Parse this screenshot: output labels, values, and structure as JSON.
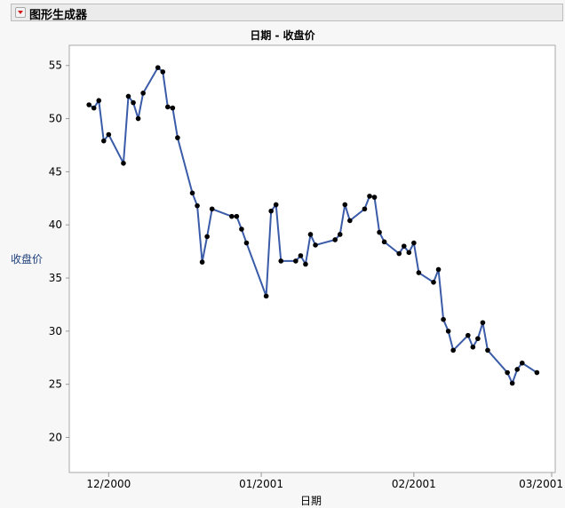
{
  "header": {
    "title": "图形生成器",
    "menu_icon": "red-triangle-menu-icon",
    "disclosure_icon": "disclosure-triangle-icon"
  },
  "chart_data": {
    "type": "line",
    "title": "日期 - 收盘价",
    "xlabel": "日期",
    "ylabel": "收盘价",
    "ylim": [
      16.7,
      56.9
    ],
    "xlim": [
      "2000-11-23",
      "2001-03-01"
    ],
    "yticks": [
      20,
      25,
      30,
      35,
      40,
      45,
      50,
      55
    ],
    "xticks": [
      {
        "date": "2000-12-01",
        "label": "12/2000"
      },
      {
        "date": "2001-01-01",
        "label": "01/2001"
      },
      {
        "date": "2001-02-01",
        "label": "02/2001"
      },
      {
        "date": "2001-03-01",
        "label": "03/2001"
      }
    ],
    "grid": false,
    "line_color": "#3a5ba8",
    "marker_color": "#000000",
    "x": [
      "2000-11-27",
      "2000-11-28",
      "2000-11-29",
      "2000-11-30",
      "2000-12-01",
      "2000-12-04",
      "2000-12-05",
      "2000-12-06",
      "2000-12-07",
      "2000-12-08",
      "2000-12-11",
      "2000-12-12",
      "2000-12-13",
      "2000-12-14",
      "2000-12-15",
      "2000-12-18",
      "2000-12-19",
      "2000-12-20",
      "2000-12-21",
      "2000-12-22",
      "2000-12-26",
      "2000-12-27",
      "2000-12-28",
      "2000-12-29",
      "2001-01-02",
      "2001-01-03",
      "2001-01-04",
      "2001-01-05",
      "2001-01-08",
      "2001-01-09",
      "2001-01-10",
      "2001-01-11",
      "2001-01-12",
      "2001-01-16",
      "2001-01-17",
      "2001-01-18",
      "2001-01-19",
      "2001-01-22",
      "2001-01-23",
      "2001-01-24",
      "2001-01-25",
      "2001-01-26",
      "2001-01-29",
      "2001-01-30",
      "2001-01-31",
      "2001-02-01",
      "2001-02-02",
      "2001-02-05",
      "2001-02-06",
      "2001-02-07",
      "2001-02-08",
      "2001-02-09",
      "2001-02-12",
      "2001-02-13",
      "2001-02-14",
      "2001-02-15",
      "2001-02-16",
      "2001-02-20",
      "2001-02-21",
      "2001-02-22",
      "2001-02-23",
      "2001-02-26"
    ],
    "y": [
      51.3,
      51.0,
      51.7,
      47.9,
      48.5,
      45.8,
      52.1,
      51.5,
      50.0,
      52.4,
      54.8,
      54.4,
      51.1,
      51.0,
      48.2,
      43.0,
      41.8,
      36.5,
      38.9,
      41.5,
      40.8,
      40.8,
      39.6,
      38.3,
      33.3,
      41.3,
      41.9,
      36.6,
      36.6,
      37.1,
      36.3,
      39.1,
      38.1,
      38.6,
      39.1,
      41.9,
      40.4,
      41.5,
      42.7,
      42.6,
      39.3,
      38.4,
      37.3,
      38.0,
      37.4,
      38.3,
      35.5,
      34.6,
      35.8,
      31.1,
      30.0,
      28.2,
      29.6,
      28.5,
      29.3,
      30.8,
      28.2,
      26.1,
      25.1,
      26.4,
      27.0,
      26.1
    ]
  }
}
